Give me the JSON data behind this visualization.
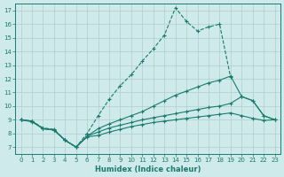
{
  "xlabel": "Humidex (Indice chaleur)",
  "bg_color": "#ceeaea",
  "grid_color": "#b0cece",
  "line_color": "#1a7a6e",
  "xlim": [
    -0.5,
    23.5
  ],
  "ylim": [
    6.5,
    17.5
  ],
  "xticks": [
    0,
    1,
    2,
    3,
    4,
    5,
    6,
    7,
    8,
    9,
    10,
    11,
    12,
    13,
    14,
    15,
    16,
    17,
    18,
    19,
    20,
    21,
    22,
    23
  ],
  "yticks": [
    7,
    8,
    9,
    10,
    11,
    12,
    13,
    14,
    15,
    16,
    17
  ],
  "curves": [
    {
      "x": [
        0,
        1,
        2,
        3,
        4,
        5,
        6,
        7,
        8,
        9,
        10,
        11,
        12,
        13,
        14,
        15,
        16,
        17,
        18,
        19
      ],
      "y": [
        9.0,
        8.9,
        8.4,
        8.3,
        7.5,
        7.0,
        8.0,
        9.3,
        10.5,
        11.5,
        12.3,
        13.3,
        14.2,
        15.2,
        17.2,
        16.2,
        15.5,
        15.8,
        16.0,
        12.1
      ],
      "style": "dashed"
    },
    {
      "x": [
        0,
        1,
        2,
        3,
        4,
        5,
        6,
        7,
        8,
        9,
        10,
        11,
        12,
        13,
        14,
        15,
        16,
        17,
        18,
        19,
        20,
        21,
        22,
        23
      ],
      "y": [
        9.0,
        8.9,
        8.35,
        8.25,
        7.5,
        7.0,
        7.8,
        8.35,
        8.7,
        9.0,
        9.3,
        9.6,
        10.0,
        10.4,
        10.8,
        11.1,
        11.4,
        11.7,
        11.9,
        12.2,
        10.7,
        10.4,
        9.3,
        9.0
      ],
      "style": "solid"
    },
    {
      "x": [
        0,
        1,
        2,
        3,
        4,
        5,
        6,
        7,
        8,
        9,
        10,
        11,
        12,
        13,
        14,
        15,
        16,
        17,
        18,
        19,
        20,
        21,
        22,
        23
      ],
      "y": [
        9.0,
        8.9,
        8.35,
        8.25,
        7.5,
        7.0,
        7.8,
        8.1,
        8.4,
        8.6,
        8.8,
        9.0,
        9.15,
        9.3,
        9.45,
        9.6,
        9.75,
        9.9,
        10.0,
        10.2,
        10.7,
        10.4,
        9.3,
        9.0
      ],
      "style": "solid"
    },
    {
      "x": [
        0,
        1,
        2,
        3,
        4,
        5,
        6,
        7,
        8,
        9,
        10,
        11,
        12,
        13,
        14,
        15,
        16,
        17,
        18,
        19,
        20,
        21,
        22,
        23
      ],
      "y": [
        9.0,
        8.85,
        8.35,
        8.25,
        7.5,
        7.0,
        7.75,
        7.85,
        8.1,
        8.3,
        8.5,
        8.65,
        8.8,
        8.9,
        9.0,
        9.1,
        9.2,
        9.3,
        9.4,
        9.5,
        9.3,
        9.1,
        8.95,
        9.0
      ],
      "style": "solid"
    }
  ]
}
